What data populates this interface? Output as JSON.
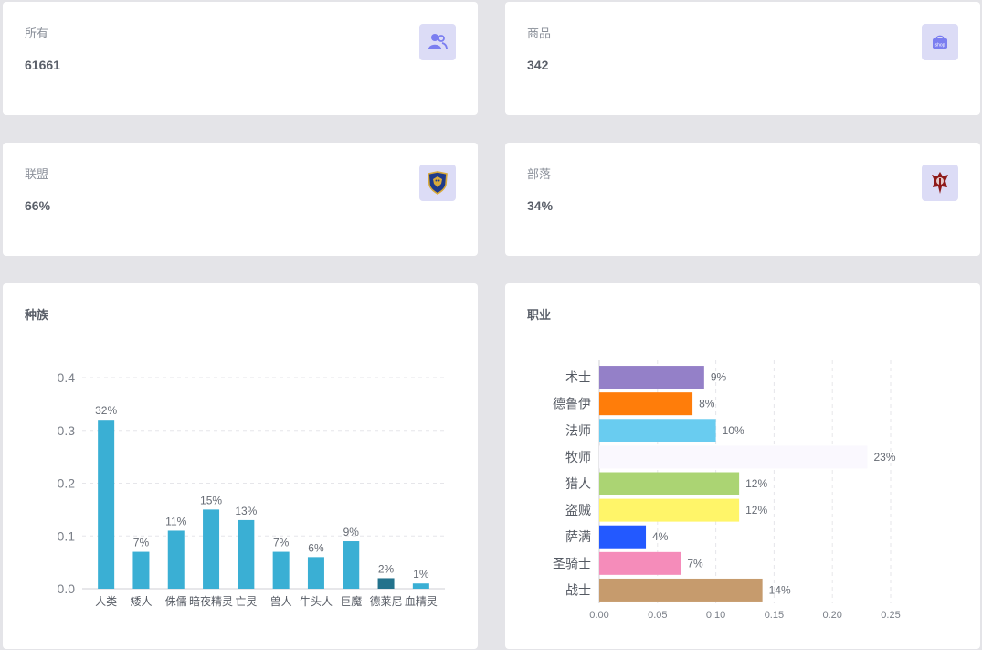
{
  "stats": {
    "all": {
      "label": "所有",
      "value": "61661",
      "icon": "users-icon"
    },
    "goods": {
      "label": "商品",
      "value": "342",
      "icon": "shop-bag-icon",
      "icon_text": "shop"
    },
    "alliance": {
      "label": "联盟",
      "value": "66%",
      "icon": "alliance-emblem-icon"
    },
    "horde": {
      "label": "部落",
      "value": "34%",
      "icon": "horde-emblem-icon"
    }
  },
  "colors": {
    "accent_icon_bg": "#dcdcf6",
    "icon_fg": "#7b7ef0"
  },
  "chart_data": [
    {
      "type": "bar",
      "title": "种族",
      "categories": [
        "人类",
        "矮人",
        "侏儒",
        "暗夜精灵",
        "亡灵",
        "兽人",
        "牛头人",
        "巨魔",
        "德莱尼",
        "血精灵"
      ],
      "values": [
        0.32,
        0.07,
        0.11,
        0.15,
        0.13,
        0.07,
        0.06,
        0.09,
        0.02,
        0.01
      ],
      "data_labels": [
        "32%",
        "7%",
        "11%",
        "15%",
        "13%",
        "7%",
        "6%",
        "9%",
        "2%",
        "1%"
      ],
      "colors": [
        "#3aafd4",
        "#3aafd4",
        "#3aafd4",
        "#3aafd4",
        "#3aafd4",
        "#3aafd4",
        "#3aafd4",
        "#3aafd4",
        "#23728c",
        "#3aafd4"
      ],
      "ylim": [
        0,
        0.4
      ],
      "yticks": [
        0.0,
        0.1,
        0.2,
        0.3,
        0.4
      ],
      "ytick_labels": [
        "0.0",
        "0.1",
        "0.2",
        "0.3",
        "0.4"
      ],
      "grid": "horizontal dashed"
    },
    {
      "type": "bar",
      "orientation": "horizontal",
      "title": "职业",
      "categories": [
        "术士",
        "德鲁伊",
        "法师",
        "牧师",
        "猎人",
        "盗贼",
        "萨满",
        "圣骑士",
        "战士"
      ],
      "values": [
        0.09,
        0.08,
        0.1,
        0.23,
        0.12,
        0.12,
        0.04,
        0.07,
        0.14
      ],
      "data_labels": [
        "9%",
        "8%",
        "10%",
        "23%",
        "12%",
        "12%",
        "4%",
        "7%",
        "14%"
      ],
      "colors": [
        "#9480c8",
        "#ff7d0a",
        "#69ccf0",
        "#faf8fe",
        "#abd473",
        "#fff569",
        "#2359ff",
        "#f58cba",
        "#c69b6d"
      ],
      "xlim": [
        0,
        0.25
      ],
      "xticks": [
        0.0,
        0.05,
        0.1,
        0.15,
        0.2,
        0.25
      ],
      "xtick_labels": [
        "0.00",
        "0.05",
        "0.10",
        "0.15",
        "0.20",
        "0.25"
      ],
      "grid": "vertical dashed"
    }
  ]
}
